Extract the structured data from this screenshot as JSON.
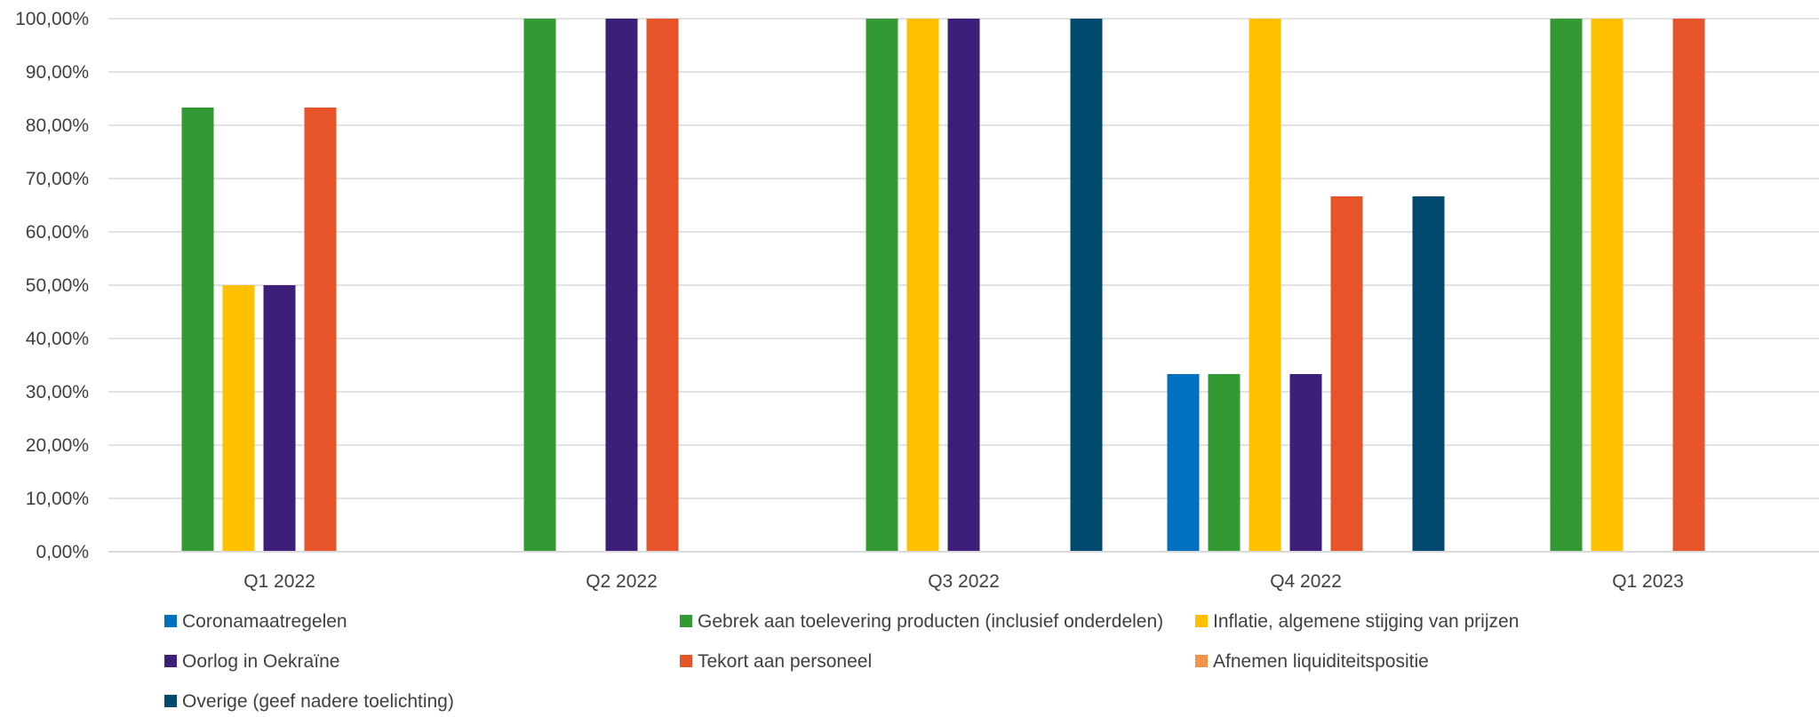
{
  "chart_data": {
    "type": "bar",
    "categories": [
      "Q1 2022",
      "Q2 2022",
      "Q3 2022",
      "Q4 2022",
      "Q1 2023"
    ],
    "ylim": [
      0,
      100
    ],
    "ytick_step": 10,
    "y_tick_format": "percent-comma-2",
    "grid": true,
    "legend_position": "bottom",
    "series": [
      {
        "name": "Coronamaatregelen",
        "color": "#0070C0",
        "values": [
          0,
          0,
          0,
          33.33,
          0
        ]
      },
      {
        "name": "Gebrek aan toelevering producten (inclusief onderdelen)",
        "color": "#339933",
        "values": [
          83.33,
          100,
          100,
          33.33,
          100
        ]
      },
      {
        "name": "Inflatie, algemene stijging van prijzen",
        "color": "#FFC000",
        "values": [
          50,
          0,
          100,
          100,
          100
        ]
      },
      {
        "name": "Oorlog in Oekraïne",
        "color": "#3D1E78",
        "values": [
          50,
          100,
          100,
          33.33,
          0
        ]
      },
      {
        "name": "Tekort aan personeel",
        "color": "#E8542A",
        "values": [
          83.33,
          100,
          0,
          66.67,
          100
        ]
      },
      {
        "name": "Afnemen liquiditeitspositie",
        "color": "#F4914A",
        "values": [
          0,
          0,
          0,
          0,
          0
        ]
      },
      {
        "name": "Overige (geef nadere toelichting)",
        "color": "#004A70",
        "values": [
          0,
          0,
          100,
          66.67,
          0
        ]
      }
    ]
  }
}
